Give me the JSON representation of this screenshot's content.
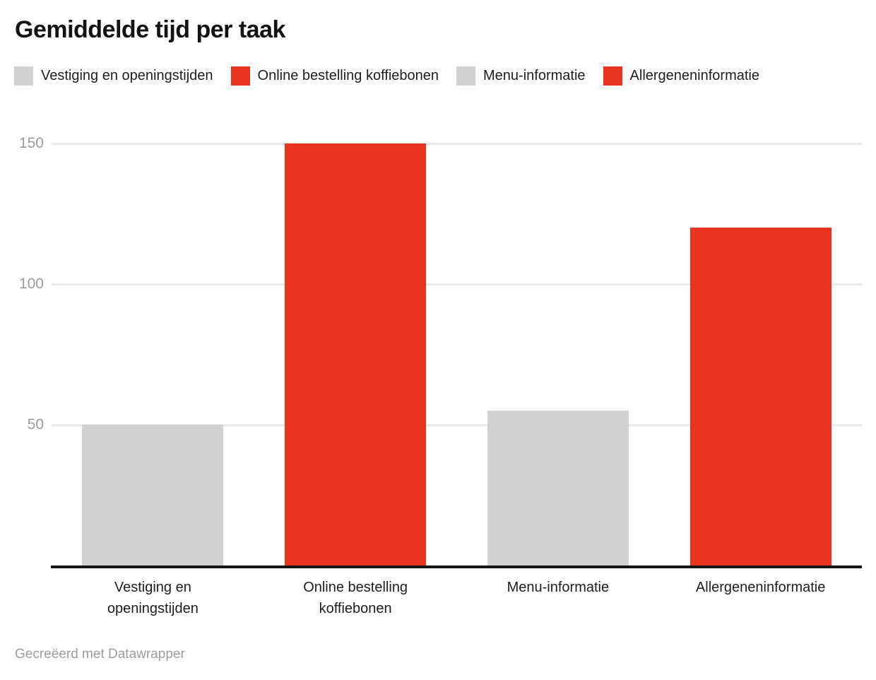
{
  "title": "Gemiddelde tijd per taak",
  "footer": "Gecreëerd met Datawrapper",
  "legend": {
    "position": "top",
    "items": [
      {
        "label": "Vestiging en openingstijden",
        "color": "#d1d1d1"
      },
      {
        "label": "Online bestelling koffiebonen",
        "color": "#e8341f"
      },
      {
        "label": "Menu-informatie",
        "color": "#d1d1d1"
      },
      {
        "label": "Allergeneninformatie",
        "color": "#e8341f"
      }
    ]
  },
  "chart_data": {
    "type": "bar",
    "title": "Gemiddelde tijd per taak",
    "categories": [
      "Vestiging en openingstijden",
      "Online bestelling koffiebonen",
      "Menu-informatie",
      "Allergeneninformatie"
    ],
    "category_labels_wrapped": [
      "Vestiging en\nopeningstijden",
      "Online bestelling\nkoffiebonen",
      "Menu-informatie",
      "Allergeneninformatie"
    ],
    "values": [
      50,
      150,
      55,
      120
    ],
    "bar_colors": [
      "#d1d1d1",
      "#e8341f",
      "#d1d1d1",
      "#e8341f"
    ],
    "yticks": [
      50,
      100,
      150
    ],
    "ylim": [
      0,
      150
    ],
    "grid": true,
    "legend_position": "top",
    "xlabel": "",
    "ylabel": ""
  },
  "colors": {
    "bar_gray": "#d1d1d1",
    "bar_red": "#e8341f",
    "gridline": "#e9e9e9",
    "axis_line": "#161616",
    "tick_text": "#9b9b9b",
    "label_text": "#1d1d1d",
    "footer_text": "#9c9c9c",
    "title_text": "#131313"
  }
}
